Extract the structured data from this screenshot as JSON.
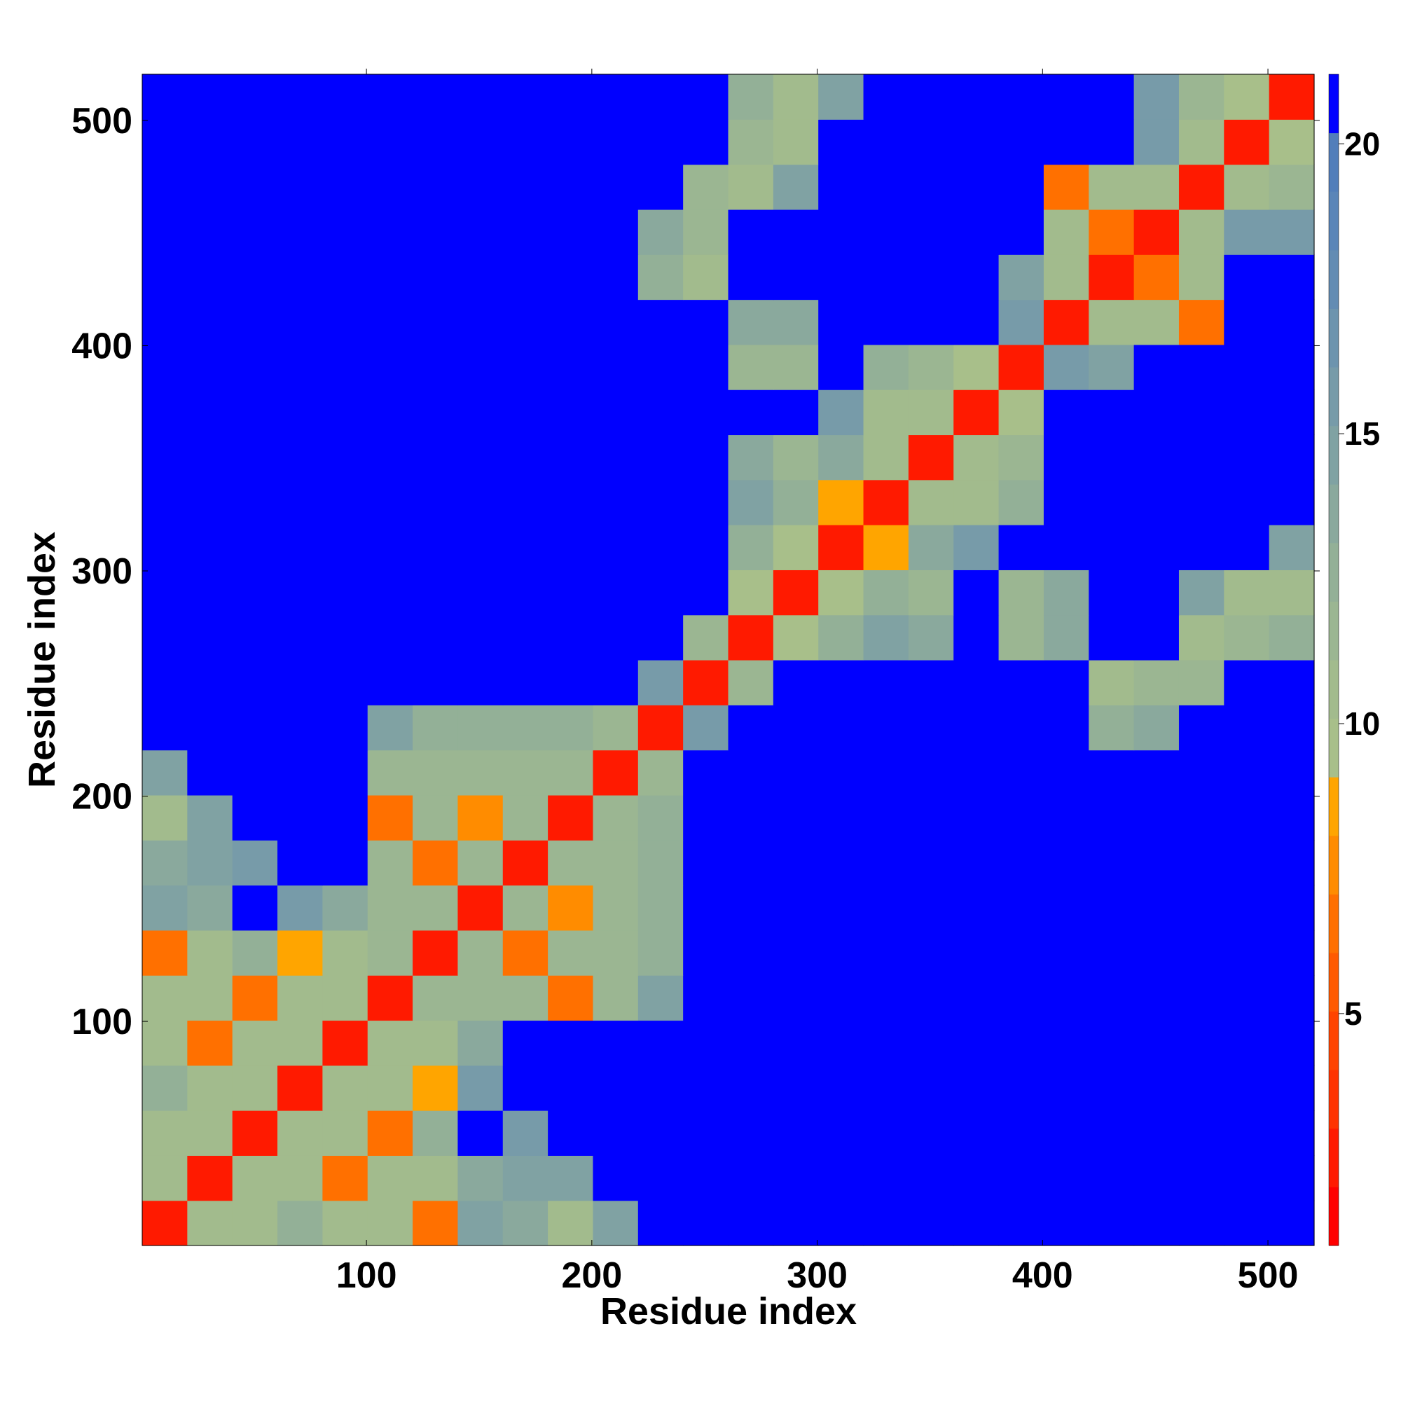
{
  "chart_data": {
    "type": "heatmap",
    "x_label": "Residue index",
    "y_label": "Residue index",
    "xlim": [
      0.5,
      520.5
    ],
    "ylim": [
      0.5,
      520.5
    ],
    "xticks": [
      100,
      200,
      300,
      400,
      500
    ],
    "yticks": [
      100,
      200,
      300,
      400,
      500
    ],
    "clim": [
      1,
      21.2
    ],
    "cticks": [
      5,
      10,
      15,
      20
    ],
    "colorscale": [
      "#ff0000",
      "#ff1a00",
      "#ff3300",
      "#ff4400",
      "#ff5a00",
      "#ff7000",
      "#ff8c00",
      "#ffa500",
      "#a8bf8a",
      "#a2bb8d",
      "#9bb692",
      "#93b097",
      "#8aa99d",
      "#80a2a3",
      "#779ba9",
      "#6d94ae",
      "#638cb3",
      "#5a85b8",
      "#527eba",
      "#0000ff"
    ],
    "z": [
      [
        3,
        11,
        11,
        13,
        11,
        11,
        7,
        15,
        14,
        11,
        15,
        21,
        21,
        21,
        21,
        21,
        21,
        21,
        21,
        21,
        21,
        21,
        21,
        21,
        21,
        21
      ],
      [
        11,
        3,
        11,
        11,
        7,
        11,
        11,
        14,
        15,
        15,
        21,
        21,
        21,
        21,
        21,
        21,
        21,
        21,
        21,
        21,
        21,
        21,
        21,
        21,
        21,
        21
      ],
      [
        11,
        11,
        3,
        11,
        11,
        7,
        13,
        21,
        16,
        21,
        21,
        21,
        21,
        21,
        21,
        21,
        21,
        21,
        21,
        21,
        21,
        21,
        21,
        21,
        21,
        21
      ],
      [
        13,
        11,
        11,
        3,
        11,
        11,
        9,
        16,
        21,
        21,
        21,
        21,
        21,
        21,
        21,
        21,
        21,
        21,
        21,
        21,
        21,
        21,
        21,
        21,
        21,
        21
      ],
      [
        11,
        7,
        11,
        11,
        3,
        11,
        11,
        14,
        21,
        21,
        21,
        21,
        21,
        21,
        21,
        21,
        21,
        21,
        21,
        21,
        21,
        21,
        21,
        21,
        21,
        21
      ],
      [
        11,
        11,
        7,
        11,
        11,
        3,
        12,
        12,
        12,
        7,
        12,
        15,
        21,
        21,
        21,
        21,
        21,
        21,
        21,
        21,
        21,
        21,
        21,
        21,
        21,
        21
      ],
      [
        7,
        11,
        13,
        9,
        11,
        12,
        3,
        12,
        7,
        12,
        12,
        13,
        21,
        21,
        21,
        21,
        21,
        21,
        21,
        21,
        21,
        21,
        21,
        21,
        21,
        21
      ],
      [
        15,
        14,
        21,
        16,
        14,
        12,
        12,
        3,
        12,
        8,
        12,
        13,
        21,
        21,
        21,
        21,
        21,
        21,
        21,
        21,
        21,
        21,
        21,
        21,
        21,
        21
      ],
      [
        14,
        15,
        16,
        21,
        21,
        12,
        7,
        12,
        3,
        12,
        12,
        13,
        21,
        21,
        21,
        21,
        21,
        21,
        21,
        21,
        21,
        21,
        21,
        21,
        21,
        21
      ],
      [
        11,
        15,
        21,
        21,
        21,
        7,
        12,
        8,
        12,
        3,
        12,
        13,
        21,
        21,
        21,
        21,
        21,
        21,
        21,
        21,
        21,
        21,
        21,
        21,
        21,
        21
      ],
      [
        15,
        21,
        21,
        21,
        21,
        12,
        12,
        12,
        12,
        12,
        3,
        12,
        21,
        21,
        21,
        21,
        21,
        21,
        21,
        21,
        21,
        21,
        21,
        21,
        21,
        21
      ],
      [
        21,
        21,
        21,
        21,
        21,
        15,
        13,
        13,
        13,
        13,
        12,
        3,
        16,
        21,
        21,
        21,
        21,
        21,
        21,
        21,
        21,
        13,
        14,
        21,
        21,
        21
      ],
      [
        21,
        21,
        21,
        21,
        21,
        21,
        21,
        21,
        21,
        21,
        21,
        16,
        3,
        12,
        21,
        21,
        21,
        21,
        21,
        21,
        21,
        11,
        12,
        12,
        21,
        21
      ],
      [
        21,
        21,
        21,
        21,
        21,
        21,
        21,
        21,
        21,
        21,
        21,
        21,
        12,
        3,
        10,
        13,
        15,
        14,
        21,
        12,
        14,
        21,
        21,
        11,
        12,
        13
      ],
      [
        21,
        21,
        21,
        21,
        21,
        21,
        21,
        21,
        21,
        21,
        21,
        21,
        21,
        10,
        3,
        10,
        13,
        12,
        21,
        12,
        14,
        21,
        21,
        15,
        11,
        11
      ],
      [
        21,
        21,
        21,
        21,
        21,
        21,
        21,
        21,
        21,
        21,
        21,
        21,
        21,
        13,
        10,
        3,
        9,
        14,
        16,
        21,
        21,
        21,
        21,
        21,
        21,
        15
      ],
      [
        21,
        21,
        21,
        21,
        21,
        21,
        21,
        21,
        21,
        21,
        21,
        21,
        21,
        15,
        13,
        9,
        3,
        11,
        11,
        13,
        21,
        21,
        21,
        21,
        21,
        21
      ],
      [
        21,
        21,
        21,
        21,
        21,
        21,
        21,
        21,
        21,
        21,
        21,
        21,
        21,
        14,
        12,
        14,
        11,
        3,
        11,
        12,
        21,
        21,
        21,
        21,
        21,
        21
      ],
      [
        21,
        21,
        21,
        21,
        21,
        21,
        21,
        21,
        21,
        21,
        21,
        21,
        21,
        21,
        21,
        16,
        11,
        11,
        3,
        10,
        21,
        21,
        21,
        21,
        21,
        21
      ],
      [
        21,
        21,
        21,
        21,
        21,
        21,
        21,
        21,
        21,
        21,
        21,
        21,
        21,
        12,
        12,
        21,
        13,
        12,
        10,
        3,
        16,
        15,
        21,
        21,
        21,
        21
      ],
      [
        21,
        21,
        21,
        21,
        21,
        21,
        21,
        21,
        21,
        21,
        21,
        21,
        21,
        14,
        14,
        21,
        21,
        21,
        21,
        16,
        3,
        11,
        11,
        7,
        21,
        21
      ],
      [
        21,
        21,
        21,
        21,
        21,
        21,
        21,
        21,
        21,
        21,
        21,
        13,
        11,
        21,
        21,
        21,
        21,
        21,
        21,
        15,
        11,
        3,
        7,
        11,
        21,
        21
      ],
      [
        21,
        21,
        21,
        21,
        21,
        21,
        21,
        21,
        21,
        21,
        21,
        14,
        12,
        21,
        21,
        21,
        21,
        21,
        21,
        21,
        11,
        7,
        3,
        11,
        16,
        16
      ],
      [
        21,
        21,
        21,
        21,
        21,
        21,
        21,
        21,
        21,
        21,
        21,
        21,
        12,
        11,
        15,
        21,
        21,
        21,
        21,
        21,
        7,
        11,
        11,
        3,
        11,
        12
      ],
      [
        21,
        21,
        21,
        21,
        21,
        21,
        21,
        21,
        21,
        21,
        21,
        21,
        21,
        12,
        11,
        21,
        21,
        21,
        21,
        21,
        21,
        21,
        16,
        11,
        3,
        10
      ],
      [
        21,
        21,
        21,
        21,
        21,
        21,
        21,
        21,
        21,
        21,
        21,
        21,
        21,
        13,
        11,
        15,
        21,
        21,
        21,
        21,
        21,
        21,
        16,
        12,
        10,
        3
      ]
    ]
  }
}
